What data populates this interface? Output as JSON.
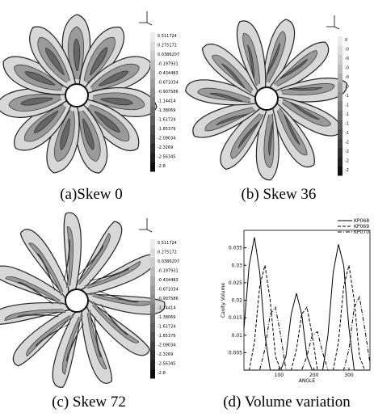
{
  "figure": {
    "panels": [
      {
        "caption": "(a)Skew 0",
        "colorbar_labels": [
          "0.511724",
          "0.275172",
          "0.0386207",
          "-0.197931",
          "-0.434483",
          "-0.671034",
          "-0.907586",
          "-1.14414",
          "-1.38069",
          "-1.61724",
          "-1.85379",
          "-2.09034",
          "-2.3269",
          "-2.56345",
          "-2.8"
        ]
      },
      {
        "caption": "(b) Skew 36",
        "colorbar_labels": [
          "0",
          "-0",
          "-0",
          "-0",
          "-0",
          "-0",
          "-1",
          "-1",
          "-1",
          "-1",
          "-1",
          "-2",
          "-2",
          "-2",
          "-2"
        ]
      },
      {
        "caption": "(c) Skew 72",
        "colorbar_labels": [
          "0.511724",
          "0.275172",
          "0.0386207",
          "-0.197931",
          "-0.434483",
          "-0.671034",
          "-0.907586",
          "-1.14414",
          "-1.38069",
          "-1.61724",
          "-1.85379",
          "-2.09034",
          "-2.3269",
          "-2.56345",
          "-2.8"
        ]
      },
      {
        "caption": "(d) Volume variation"
      }
    ]
  },
  "chart_data": {
    "type": "line",
    "x_label": "ANGLE",
    "y_label": "Cavity Volume",
    "x": [
      0,
      15,
      30,
      45,
      60,
      75,
      90,
      105,
      120,
      135,
      150,
      165,
      180,
      195,
      210,
      225,
      240,
      255,
      270,
      285,
      300,
      315,
      330,
      345,
      360
    ],
    "series": [
      {
        "name": "KP068",
        "color": "#000000",
        "line_style": "solid",
        "values": [
          0.012,
          0.03,
          0.038,
          0.028,
          0.01,
          0,
          0,
          0,
          0.004,
          0.016,
          0.022,
          0.016,
          0.004,
          0,
          0,
          0,
          0.01,
          0.028,
          0.036,
          0.03,
          0.012,
          0,
          0,
          0,
          0
        ]
      },
      {
        "name": "KP069",
        "color": "#000000",
        "line_style": "dashed",
        "values": [
          0,
          0,
          0.008,
          0.024,
          0.03,
          0.02,
          0.004,
          0,
          0,
          0,
          0.006,
          0.016,
          0.018,
          0.01,
          0,
          0,
          0,
          0,
          0.008,
          0.024,
          0.03,
          0.02,
          0.004,
          0,
          0
        ]
      },
      {
        "name": "KP070",
        "color": "#000000",
        "line_style": "dashdot",
        "values": [
          0,
          0,
          0,
          0,
          0.006,
          0.016,
          0.018,
          0.01,
          0,
          0,
          0,
          0,
          0.004,
          0.01,
          0.011,
          0.005,
          0,
          0,
          0,
          0,
          0.006,
          0.018,
          0.021,
          0.012,
          0.002
        ]
      }
    ],
    "xlim": [
      0,
      360
    ],
    "ylim": [
      0,
      0.04
    ],
    "xticks": [
      100,
      200,
      300
    ],
    "yticks": [
      0.005,
      0.01,
      0.015,
      0.02,
      0.025,
      0.03,
      0.035
    ],
    "legend": "upper right"
  }
}
